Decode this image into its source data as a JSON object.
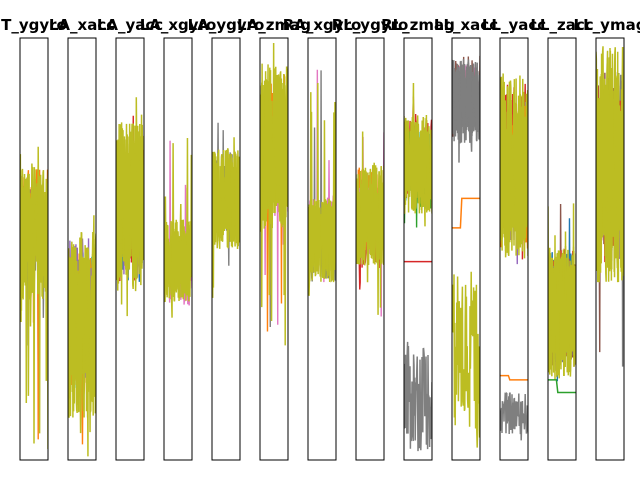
{
  "chart_data": {
    "type": "line",
    "layout": "small-multiples",
    "grid": false,
    "legend": "none",
    "ticks": "none",
    "series_colors": [
      "#1f77b4",
      "#ff7f0e",
      "#2ca02c",
      "#d62728",
      "#9467bd",
      "#8c564b",
      "#e377c2",
      "#7f7f7f",
      "#bcbd22",
      "#17becf"
    ],
    "panels": [
      {
        "title": "T_ygyro",
        "ylim": [
          0,
          1
        ],
        "signal": {
          "center": 0.54,
          "amplitude": 0.16,
          "spike_low": 0.0,
          "spike_high": 0.8
        },
        "dominant": "#bcbd22",
        "secondary": [
          "#7f7f7f",
          "#ff7f0e"
        ]
      },
      {
        "title": "LA_xacc",
        "ylim": [
          0,
          1
        ],
        "signal": {
          "center": 0.32,
          "amplitude": 0.22,
          "spike_low": 0.0,
          "spike_high": 0.58
        },
        "dominant": "#bcbd22",
        "secondary": [
          "#17becf",
          "#ff7f0e",
          "#9467bd"
        ]
      },
      {
        "title": "LA_yacc",
        "ylim": [
          0,
          1
        ],
        "signal": {
          "center": 0.6,
          "amplitude": 0.2,
          "spike_low": 0.3,
          "spike_high": 0.9
        },
        "dominant": "#bcbd22",
        "secondary": [
          "#1f77b4",
          "#9467bd",
          "#d62728"
        ]
      },
      {
        "title": "LA_xgyro",
        "ylim": [
          0,
          1
        ],
        "signal": {
          "center": 0.47,
          "amplitude": 0.1,
          "spike_low": 0.3,
          "spike_high": 0.8
        },
        "dominant": "#bcbd22",
        "secondary": [
          "#e377c2"
        ]
      },
      {
        "title": "LA_ygyro",
        "ylim": [
          0,
          1
        ],
        "signal": {
          "center": 0.62,
          "amplitude": 0.12,
          "spike_low": 0.37,
          "spike_high": 0.82
        },
        "dominant": "#bcbd22",
        "secondary": [
          "#7f7f7f"
        ]
      },
      {
        "title": "LA_zmag",
        "ylim": [
          0,
          1
        ],
        "signal": {
          "center": 0.74,
          "amplitude": 0.2,
          "spike_low": 0.25,
          "spike_high": 0.99
        },
        "dominant": "#bcbd22",
        "secondary": [
          "#7f7f7f",
          "#e377c2",
          "#ff7f0e"
        ]
      },
      {
        "title": "RA_xgyro",
        "ylim": [
          0,
          1
        ],
        "signal": {
          "center": 0.52,
          "amplitude": 0.1,
          "spike_low": 0.38,
          "spike_high": 0.93
        },
        "dominant": "#bcbd22",
        "secondary": [
          "#e377c2",
          "#7f7f7f"
        ]
      },
      {
        "title": "RL_ygyro",
        "ylim": [
          0,
          1
        ],
        "signal": {
          "center": 0.58,
          "amplitude": 0.12,
          "spike_low": 0.33,
          "spike_high": 0.78
        },
        "dominant": "#bcbd22",
        "secondary": [
          "#d62728",
          "#ff7f0e",
          "#e377c2"
        ]
      },
      {
        "title": "RL_zmag",
        "ylim": [
          0,
          1
        ],
        "signal": {
          "center": 0.7,
          "amplitude": 0.12,
          "spike_low": 0.5,
          "spike_high": 0.9
        },
        "dominant": "#bcbd22",
        "secondary": [
          "#d62728",
          "#17becf",
          "#2ca02c"
        ],
        "lower_band": {
          "center": 0.15,
          "amplitude": 0.13,
          "color": "#7f7f7f"
        },
        "flat_line": {
          "value": 0.47,
          "color": "#d62728"
        }
      },
      {
        "title": "LL_xacc",
        "ylim": [
          0,
          1
        ],
        "signal": {
          "center": 0.85,
          "amplitude": 0.1,
          "spike_low": 0.7,
          "spike_high": 0.96
        },
        "dominant": "#7f7f7f",
        "secondary": [
          "#e377c2",
          "#8c564b"
        ],
        "lower_band": {
          "center": 0.25,
          "amplitude": 0.2,
          "color": "#bcbd22"
        },
        "step_line": {
          "start": 0.55,
          "end": 0.62,
          "color": "#ff7f0e"
        }
      },
      {
        "title": "LL_yacc",
        "ylim": [
          0,
          1
        ],
        "signal": {
          "center": 0.7,
          "amplitude": 0.22,
          "spike_low": 0.42,
          "spike_high": 0.9
        },
        "dominant": "#bcbd22",
        "secondary": [
          "#d62728",
          "#9467bd",
          "#ff7f0e"
        ],
        "lower_band": {
          "center": 0.11,
          "amplitude": 0.05,
          "color": "#7f7f7f"
        },
        "step_line": {
          "start": 0.2,
          "end": 0.19,
          "color": "#ff7f0e"
        }
      },
      {
        "title": "LL_zacc",
        "ylim": [
          0,
          1
        ],
        "signal": {
          "center": 0.35,
          "amplitude": 0.16,
          "spike_low": 0.18,
          "spike_high": 0.62
        },
        "dominant": "#bcbd22",
        "secondary": [
          "#8c564b",
          "#1f77b4",
          "#d62728",
          "#7f7f7f"
        ],
        "step_line": {
          "start": 0.19,
          "end": 0.16,
          "color": "#2ca02c"
        }
      },
      {
        "title": "LL_ymag",
        "ylim": [
          0,
          1
        ],
        "signal": {
          "center": 0.7,
          "amplitude": 0.28,
          "spike_low": 0.18,
          "spike_high": 0.99
        },
        "dominant": "#bcbd22",
        "secondary": [
          "#8c564b",
          "#9467bd",
          "#7f7f7f",
          "#d62728"
        ]
      }
    ]
  }
}
